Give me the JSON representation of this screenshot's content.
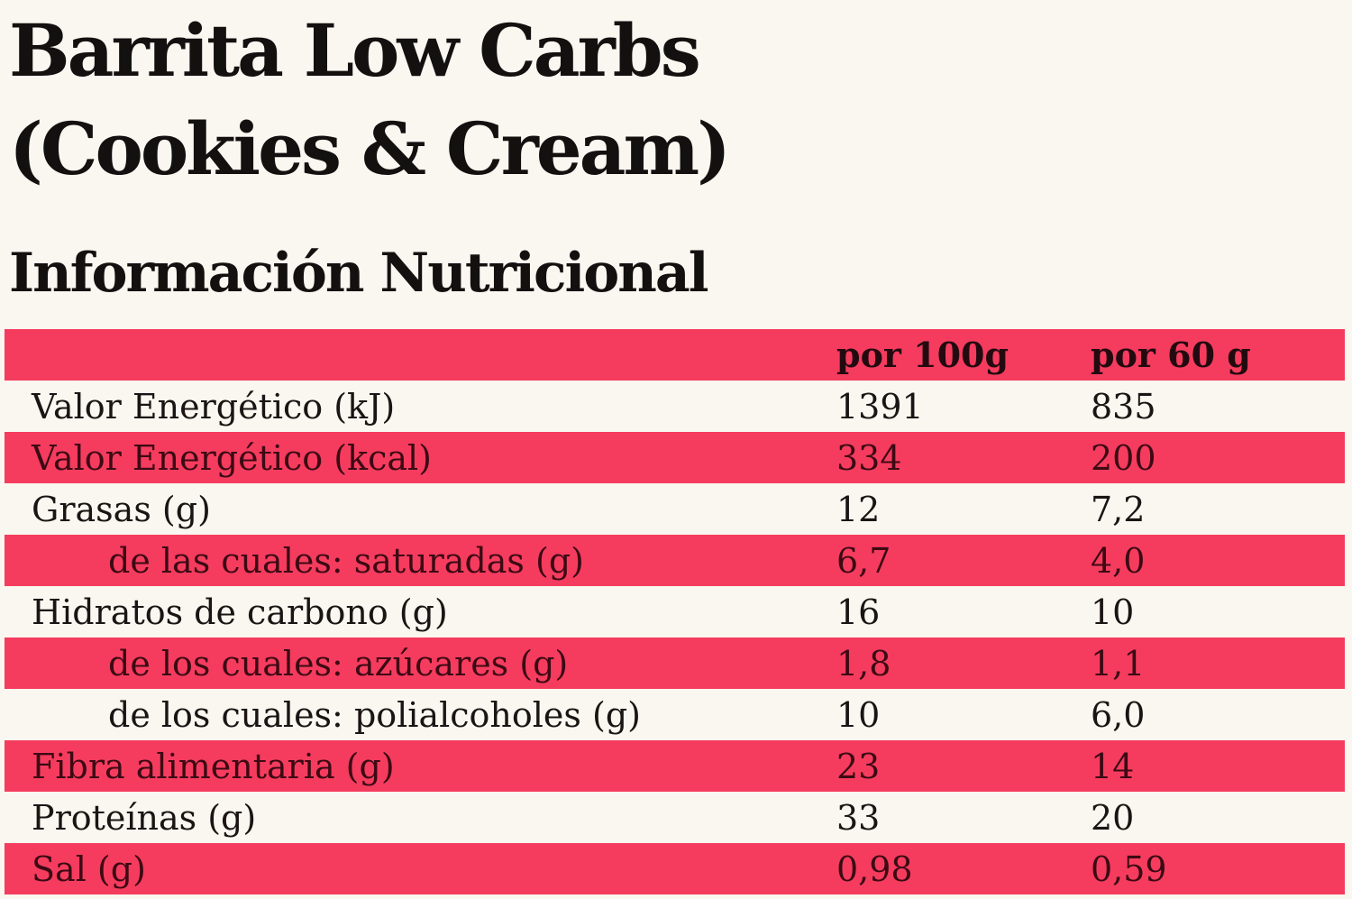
{
  "page": {
    "title_line1": "Barrita Low Carbs",
    "title_line2": "(Cookies & Cream)",
    "section_title": "Información Nutricional"
  },
  "colors": {
    "accent_red": "#f53c5e",
    "background_cream": "#f9f7f0",
    "text_dark": "#1b1414",
    "text_on_red": "#3c0a14"
  },
  "table": {
    "columns": [
      "por 100g",
      "por 60 g"
    ],
    "rows": [
      {
        "label": "Valor Energético (kJ)",
        "per100": "1391",
        "per60": "835",
        "indent": false
      },
      {
        "label": "Valor Energético (kcal)",
        "per100": "334",
        "per60": "200",
        "indent": false
      },
      {
        "label": "Grasas (g)",
        "per100": "12",
        "per60": "7,2",
        "indent": false
      },
      {
        "label": "de las cuales: saturadas (g)",
        "per100": "6,7",
        "per60": "4,0",
        "indent": true
      },
      {
        "label": "Hidratos de carbono (g)",
        "per100": "16",
        "per60": "10",
        "indent": false
      },
      {
        "label": "de los cuales: azúcares (g)",
        "per100": "1,8",
        "per60": "1,1",
        "indent": true
      },
      {
        "label": "de los cuales: polialcoholes (g)",
        "per100": "10",
        "per60": "6,0",
        "indent": true
      },
      {
        "label": "Fibra alimentaria (g)",
        "per100": "23",
        "per60": "14",
        "indent": false
      },
      {
        "label": "Proteínas (g)",
        "per100": "33",
        "per60": "20",
        "indent": false
      },
      {
        "label": "Sal (g)",
        "per100": "0,98",
        "per60": "0,59",
        "indent": false
      }
    ]
  }
}
